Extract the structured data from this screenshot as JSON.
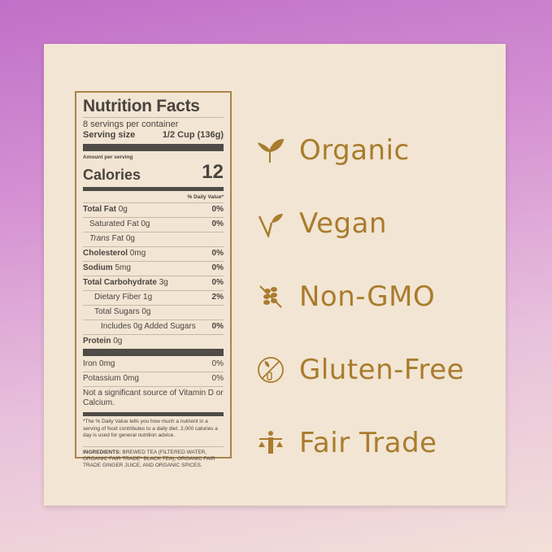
{
  "label": {
    "title": "Nutrition Facts",
    "servings": "8 servings per container",
    "serving_size_label": "Serving size",
    "serving_size_value": "1/2 Cup (136g)",
    "amount_per_serving": "Amount per serving",
    "calories_label": "Calories",
    "calories_value": "12",
    "dv_header": "% Daily Value*",
    "rows": [
      {
        "name": "Total Fat",
        "amount": "0g",
        "dv": "0%"
      },
      {
        "name": "Saturated Fat",
        "amount": "0g",
        "dv": "0%"
      },
      {
        "name": "Trans",
        "amount": "Fat 0g",
        "dv": ""
      },
      {
        "name": "Cholesterol",
        "amount": "0mg",
        "dv": "0%"
      },
      {
        "name": "Sodium",
        "amount": "5mg",
        "dv": "0%"
      },
      {
        "name": "Total Carbohydrate",
        "amount": "3g",
        "dv": "0%"
      },
      {
        "name": "Dietary Fiber",
        "amount": "1g",
        "dv": "2%"
      },
      {
        "name": "Total Sugars",
        "amount": "0g",
        "dv": ""
      },
      {
        "name": "Includes 0g Added Sugars",
        "amount": "",
        "dv": "0%"
      },
      {
        "name": "Protein",
        "amount": "0g",
        "dv": ""
      },
      {
        "name": "Iron 0mg",
        "amount": "",
        "dv": "0%"
      },
      {
        "name": "Potassium 0mg",
        "amount": "",
        "dv": "0%"
      }
    ],
    "vitamin_note": "Not a significant source of Vitamin D or Calcium.",
    "footnote": "*The % Daily Value tells you how much a nutrient in a serving of food contributes to a daily diet. 2,000 calories a day is used for general nutrition advice.",
    "ingredients_label": "INGREDIENTS:",
    "ingredients": "BREWED TEA (FILTERED WATER, ORGANIC FAIR TRADE* BLACK TEA), ORGANIC FAIR TRADE GINGER JUICE, AND ORGANIC SPICES."
  },
  "claims": [
    {
      "icon": "sprout-icon",
      "text": "Organic"
    },
    {
      "icon": "vegan-v-leaf-icon",
      "text": "Vegan"
    },
    {
      "icon": "crossed-wheat-icon",
      "text": "Non-GMO"
    },
    {
      "icon": "no-gluten-icon",
      "text": "Gluten-Free"
    },
    {
      "icon": "scales-person-icon",
      "text": "Fair Trade"
    }
  ],
  "colors": {
    "gold": "#a97c2e",
    "panel": "#f2e5d3",
    "text": "#4a4440"
  }
}
